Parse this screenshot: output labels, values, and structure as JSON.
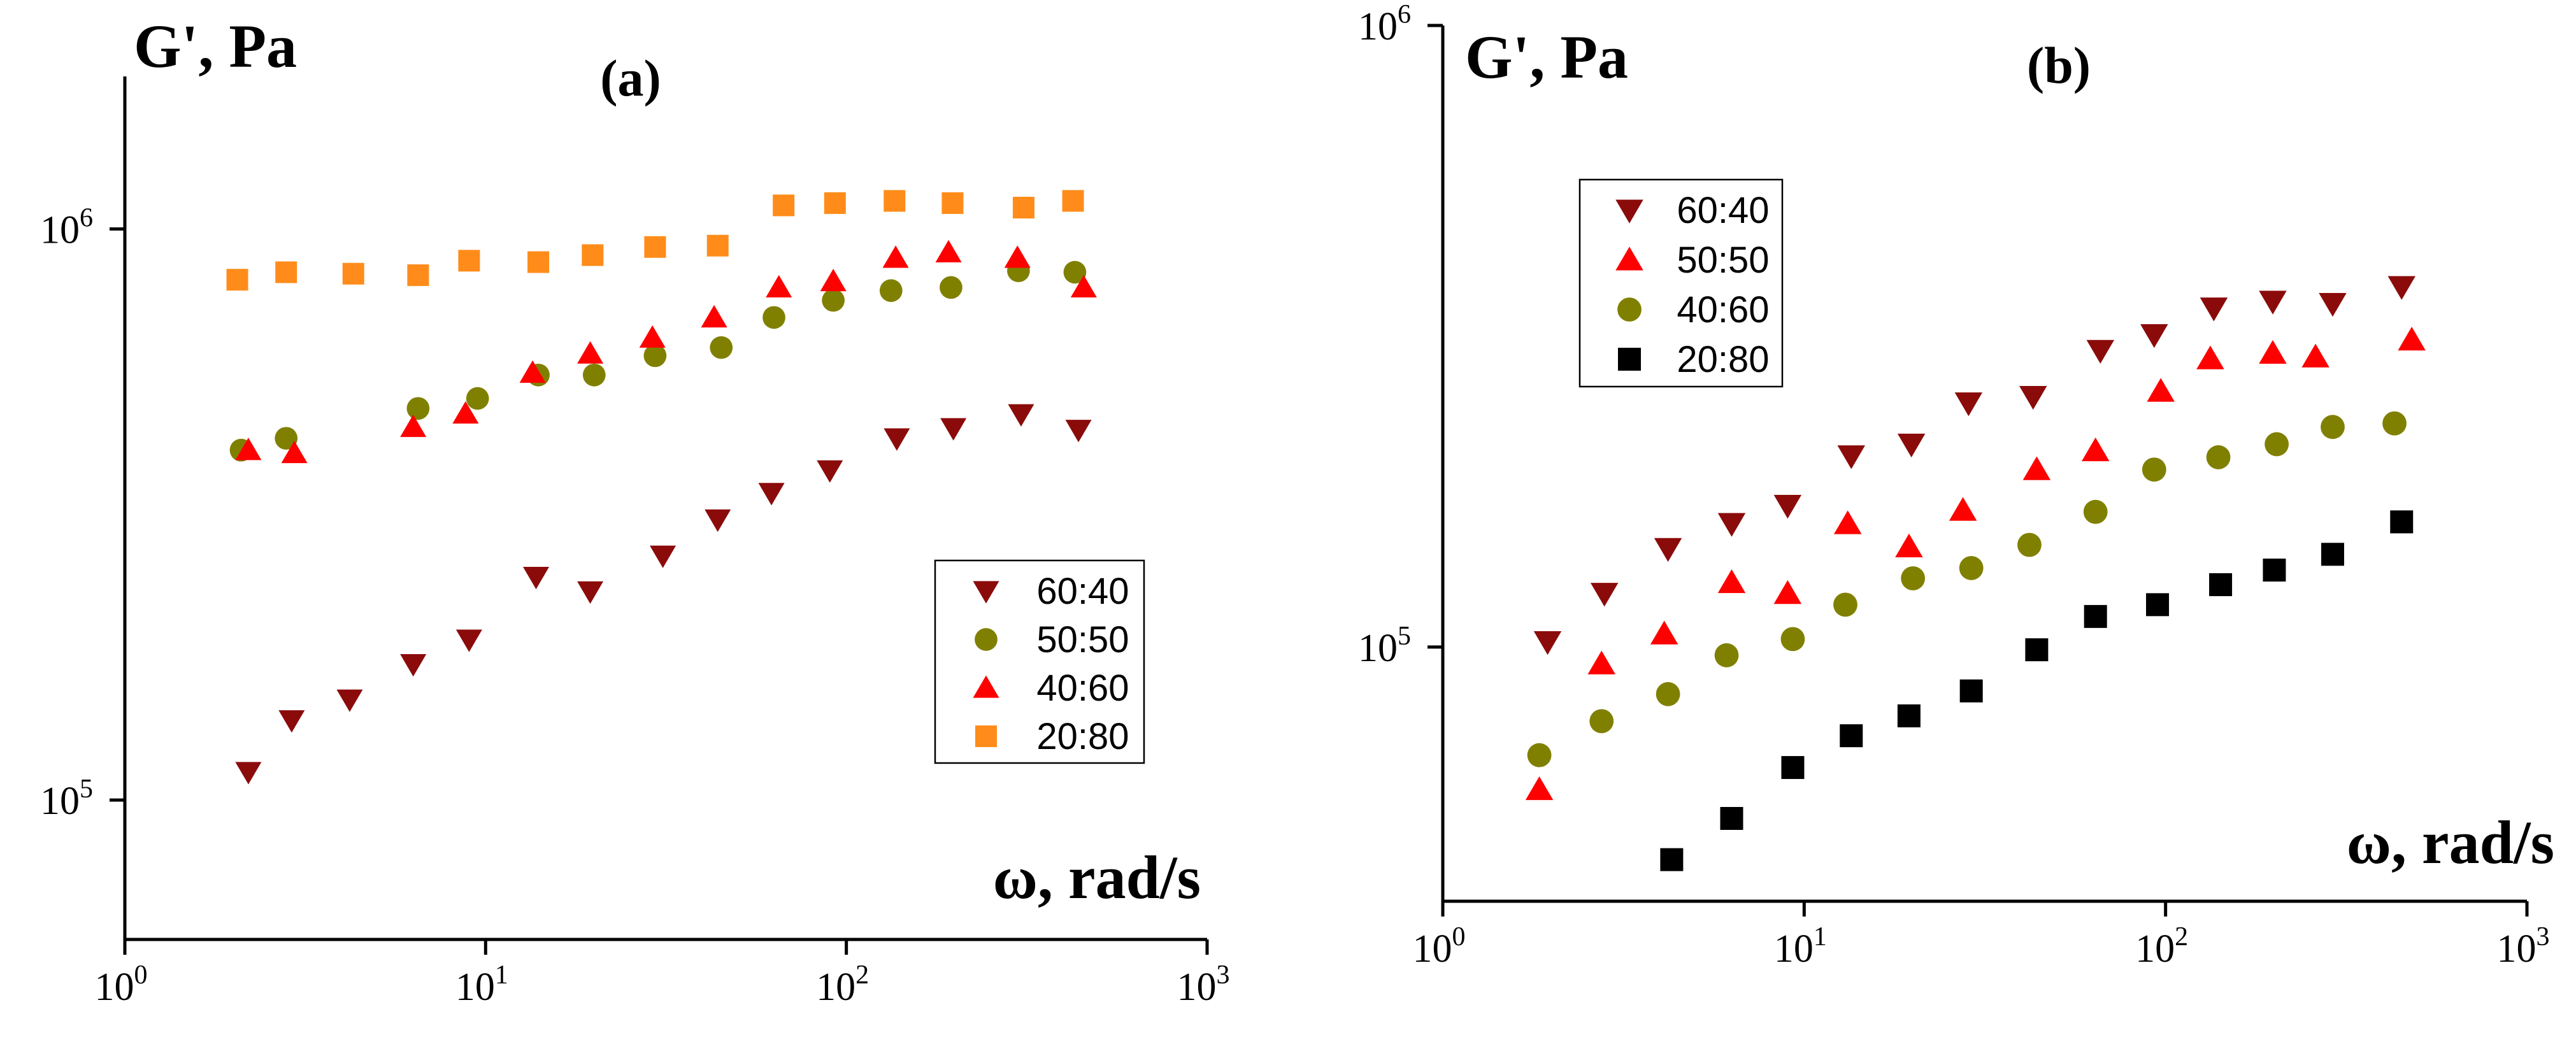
{
  "chart_data": [
    {
      "panel": "a",
      "type": "scatter",
      "title": "(a)",
      "xlabel": "ω, rad/s",
      "ylabel": "G', Pa",
      "xscale": "log",
      "yscale": "log",
      "xlim": [
        1,
        1000
      ],
      "ylim": [
        57000,
        1850000
      ],
      "xticks": [
        {
          "value": 1,
          "base": "10",
          "exp": "0"
        },
        {
          "value": 10,
          "base": "10",
          "exp": "1"
        },
        {
          "value": 100,
          "base": "10",
          "exp": "2"
        },
        {
          "value": 1000,
          "base": "10",
          "exp": "3"
        }
      ],
      "yticks": [
        {
          "value": 100000,
          "base": "10",
          "exp": "5"
        },
        {
          "value": 1000000,
          "base": "10",
          "exp": "6"
        }
      ],
      "legend_position": "right-middle",
      "series": [
        {
          "name": "60:40",
          "marker": "triangle-down",
          "color": "#8B0B0B",
          "x": [
            2.2,
            2.9,
            4.2,
            6.3,
            9,
            13.8,
            19.5,
            31,
            44,
            62,
            90,
            138,
            198,
            305,
            440
          ],
          "y": [
            112000,
            138000,
            150000,
            173000,
            191000,
            246000,
            232000,
            268000,
            310000,
            345000,
            378000,
            430000,
            448000,
            474000,
            445000
          ]
        },
        {
          "name": "50:50",
          "marker": "circle",
          "color": "#808000",
          "x": [
            2.1,
            2.8,
            6.5,
            9.5,
            14,
            20,
            29.5,
            45,
            63,
            92,
            133,
            195,
            300,
            430
          ],
          "y": [
            410000,
            430000,
            485000,
            505000,
            555000,
            555000,
            600000,
            620000,
            700000,
            750000,
            780000,
            790000,
            845000,
            840000
          ]
        },
        {
          "name": "40:60",
          "marker": "triangle-up",
          "color": "#FF0000",
          "x": [
            2.2,
            2.95,
            6.3,
            8.8,
            13.5,
            19.5,
            29,
            43,
            65,
            92,
            137,
            192,
            298,
            455
          ],
          "y": [
            410000,
            405000,
            450000,
            475000,
            560000,
            605000,
            645000,
            700000,
            790000,
            810000,
            890000,
            910000,
            890000,
            790000
          ]
        },
        {
          "name": "20:80",
          "marker": "square",
          "color": "#FF8C1A",
          "x": [
            2.05,
            2.8,
            4.3,
            6.5,
            9,
            14,
            19.8,
            29.5,
            44,
            67,
            93,
            136,
            197,
            310,
            425
          ],
          "y": [
            815000,
            840000,
            835000,
            830000,
            880000,
            875000,
            900000,
            930000,
            935000,
            1100000,
            1110000,
            1120000,
            1110000,
            1090000,
            1120000
          ]
        }
      ]
    },
    {
      "panel": "b",
      "type": "scatter",
      "title": "(b)",
      "xlabel": "ω, rad/s",
      "ylabel": "G', Pa",
      "xscale": "log",
      "yscale": "log",
      "xlim": [
        1,
        1000
      ],
      "ylim": [
        39000,
        1000000
      ],
      "xticks": [
        {
          "value": 1,
          "base": "10",
          "exp": "0"
        },
        {
          "value": 10,
          "base": "10",
          "exp": "1"
        },
        {
          "value": 100,
          "base": "10",
          "exp": "2"
        },
        {
          "value": 1000,
          "base": "10",
          "exp": "3"
        }
      ],
      "yticks": [
        {
          "value": 100000,
          "base": "10",
          "exp": "5"
        },
        {
          "value": 1000000,
          "base": "10",
          "exp": "6"
        }
      ],
      "legend_position": "top-left",
      "series": [
        {
          "name": "60:40",
          "marker": "triangle-down",
          "color": "#8B0B0B",
          "x": [
            1.95,
            2.8,
            4.2,
            6.3,
            9,
            13.5,
            19.8,
            28.5,
            43,
            66,
            93,
            136,
            198,
            290,
            450
          ],
          "y": [
            102000,
            122000,
            144000,
            158000,
            169000,
            203000,
            212000,
            247000,
            253000,
            300000,
            318000,
            351000,
            360000,
            357000,
            380000
          ]
        },
        {
          "name": "50:50",
          "marker": "triangle-up",
          "color": "#FF0000",
          "x": [
            1.85,
            2.75,
            4.1,
            6.3,
            9,
            13.2,
            19.5,
            27.5,
            44,
            64,
            97,
            133,
            198,
            260,
            480
          ],
          "y": [
            59000,
            94000,
            105000,
            127000,
            122000,
            158000,
            145000,
            166000,
            193000,
            207000,
            258000,
            291000,
            297000,
            293000,
            312000
          ]
        },
        {
          "name": "40:60",
          "marker": "circle",
          "color": "#808000",
          "x": [
            1.85,
            2.75,
            4.2,
            6.1,
            9.3,
            13,
            20,
            29,
            42,
            64,
            93,
            140,
            203,
            290,
            430
          ],
          "y": [
            67000,
            76000,
            84000,
            97000,
            103000,
            117000,
            129000,
            134000,
            146000,
            165000,
            193000,
            202000,
            212000,
            226000,
            229000
          ]
        },
        {
          "name": "20:80",
          "marker": "square",
          "color": "#000000",
          "x": [
            4.3,
            6.3,
            9.3,
            13.5,
            19.5,
            29,
            44,
            64,
            95,
            142,
            200,
            290,
            450
          ],
          "y": [
            45500,
            53000,
            64000,
            72000,
            77500,
            85000,
            99000,
            112000,
            117000,
            126000,
            133000,
            141000,
            159000
          ]
        }
      ]
    }
  ]
}
